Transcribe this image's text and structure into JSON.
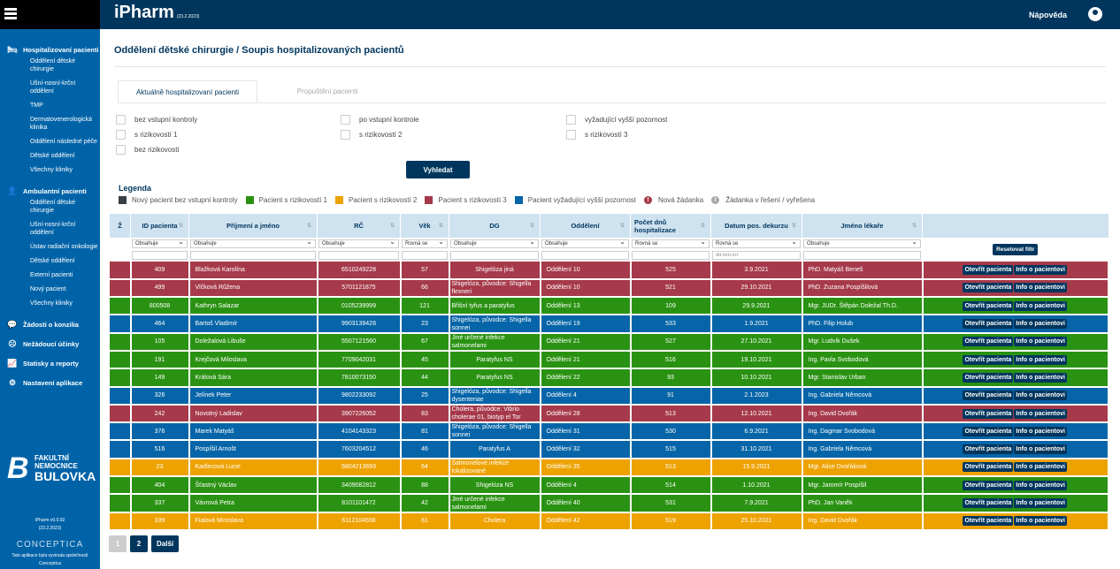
{
  "header": {
    "app_title": "iPharm",
    "app_date": "(23.2.2023)",
    "help": "Nápověda"
  },
  "sidebar": {
    "sections": [
      {
        "label": "Hospitalizovaní pacienti",
        "icon": "bed-icon",
        "items": [
          "Oddělení dětské chirurgie",
          "Ušní-nosní-krční oddělení",
          "TMP",
          "Dermatovenerologická klinika",
          "Oddělení následné péče",
          "Dětské oddělení",
          "Všechny kliniky"
        ]
      },
      {
        "label": "Ambulantní pacienti",
        "icon": "doctor-icon",
        "items": [
          "Oddělení dětské chirurgie",
          "Ušní-nosní-krční oddělení",
          "Ústav radiační onkologie",
          "Dětské oddělení",
          "Externí pacienti",
          "Nový pacient",
          "Všechny kliniky"
        ]
      },
      {
        "label": "Žádosti o konzilia",
        "icon": "chat-icon",
        "items": []
      },
      {
        "label": "Nežádoucí účinky",
        "icon": "sad-face-icon",
        "items": []
      },
      {
        "label": "Statisky a reporty",
        "icon": "chart-icon",
        "items": []
      },
      {
        "label": "Nastavení aplikace",
        "icon": "gear-icon",
        "items": []
      }
    ],
    "logo": {
      "line1": "FAKULTNÍ",
      "line2": "NEMOCNICE",
      "line3": "BULOVKA"
    },
    "version": "iPharm v0.0.92",
    "version_date": "(23.2.2023)",
    "vendor": "CONCEPTICA",
    "vendor_note": "Tato aplikace byla vyvinuta společností",
    "vendor_name": "Conceptica"
  },
  "page": {
    "title": "Oddělení dětské chirurgie / Soupis hospitalizovaných pacientů",
    "tabs": [
      {
        "label": "Aktuálně hospitalizovaní pacienti",
        "active": true
      },
      {
        "label": "Propuštění pacienti",
        "active": false
      }
    ]
  },
  "filters": {
    "checkboxes": [
      "bez vstupní kontroly",
      "po vstupní kontrole",
      "vyžadující vyšší pozornost",
      "s rizikovostí 1",
      "s rizikovostí 2",
      "s rizikovostí 3",
      "bez rizikovosti"
    ],
    "search_label": "Vyhledat"
  },
  "legend": {
    "title": "Legenda",
    "items": [
      {
        "label": "Nový pacient bez vstupní kontroly",
        "color": "#3a3f4a"
      },
      {
        "label": "Pacient s rizikovostí 1",
        "color": "#2a9212"
      },
      {
        "label": "Pacient s rizikovostí 2",
        "color": "#eea200"
      },
      {
        "label": "Pacient s rizikovostí 3",
        "color": "#a63a4a"
      },
      {
        "label": "Pacient vyžadující vyšší pozornost",
        "color": "#0565a8"
      }
    ],
    "new_request": "Nová žádanka",
    "request_in_progress": "Žádanka v řešení / vyřešena"
  },
  "table": {
    "columns": [
      "Ž",
      "ID pacienta",
      "Příjmení a jméno",
      "RČ",
      "Věk",
      "DG",
      "Oddělení",
      "Počet dnů hospitalizace",
      "Datum pos. dekurzu",
      "Jméno lékaře"
    ],
    "filters": [
      "Obsahuje",
      "Obsahuje",
      "Obsahuje",
      "Rovná se",
      "Obsahuje",
      "Obsahuje",
      "Rovná se",
      "Rovná se",
      "Obsahuje"
    ],
    "date_placeholder": "dd.mm.rrrr",
    "reset_label": "Resetovat filtr",
    "open_label": "Otevřít pacienta",
    "info_label": "Info o pacientovi",
    "rows": [
      {
        "risk": "red",
        "id": "409",
        "name": "Blažková Karolína",
        "rc": "6510249228",
        "age": "57",
        "dg": "Shigelóza jiná",
        "dept": "Oddělení 10",
        "days": "525",
        "date": "3.9.2021",
        "doctor": "PhD. Matyáš Beneš"
      },
      {
        "risk": "red",
        "id": "499",
        "name": "Vlčková Růžena",
        "rc": "5701121875",
        "age": "66",
        "dg": "Shigelóza, původce: Shigella flexneri",
        "dept": "Oddělení 10",
        "days": "521",
        "date": "29.10.2021",
        "doctor": "PhD. Zuzana Pospíšilová"
      },
      {
        "risk": "green",
        "id": "800508",
        "name": "Kathryn Salazar",
        "rc": "0105239999",
        "age": "121",
        "dg": "Břišní tyfus a paratyfus",
        "dept": "Oddělení 13",
        "days": "109",
        "date": "29.9.2021",
        "doctor": "Mgr. JUDr. Štěpán Doležal Th.D."
      },
      {
        "risk": "blue",
        "id": "464",
        "name": "Bartoš Vladimír",
        "rc": "9903139428",
        "age": "23",
        "dg": "Shigelóza, původce: Shigella sonnei",
        "dept": "Oddělení 19",
        "days": "533",
        "date": "1.9.2021",
        "doctor": "PhD. Filip Holub"
      },
      {
        "risk": "green",
        "id": "105",
        "name": "Doležalová Libuše",
        "rc": "5507121560",
        "age": "67",
        "dg": "Jiné určené infekce salmonelami",
        "dept": "Oddělení 21",
        "days": "527",
        "date": "27.10.2021",
        "doctor": "Mgr. Ludvík Dušek"
      },
      {
        "risk": "green",
        "id": "191",
        "name": "Krejčová Miloslava",
        "rc": "7709042031",
        "age": "45",
        "dg": "Paratyfus NS",
        "dept": "Oddělení 21",
        "days": "516",
        "date": "19.10.2021",
        "doctor": "Ing. Pavla Svobodová"
      },
      {
        "risk": "green",
        "id": "149",
        "name": "Králová Sára",
        "rc": "7810073150",
        "age": "44",
        "dg": "Paratyfus NS",
        "dept": "Oddělení 22",
        "days": "93",
        "date": "10.10.2021",
        "doctor": "Mgr. Stanislav Urban"
      },
      {
        "risk": "blue",
        "id": "326",
        "name": "Jelínek Peter",
        "rc": "9802233092",
        "age": "25",
        "dg": "Shigelóza, původce: Shigella dysenteriae",
        "dept": "Oddělení 4",
        "days": "91",
        "date": "2.1.2023",
        "doctor": "Ing. Gabriela Němcová"
      },
      {
        "risk": "red",
        "id": "242",
        "name": "Novotný Ladislav",
        "rc": "3907226052",
        "age": "83",
        "dg": "Cholera, původce: Vibrio cholerae 01, biotyp el Tor",
        "dept": "Oddělení 28",
        "days": "513",
        "date": "12.10.2021",
        "doctor": "Ing. David Dvořák"
      },
      {
        "risk": "blue",
        "id": "376",
        "name": "Marek Matyáš",
        "rc": "4104143323",
        "age": "81",
        "dg": "Shigelóza, původce: Shigella sonnei",
        "dept": "Oddělení 31",
        "days": "530",
        "date": "6.9.2021",
        "doctor": "Ing. Dagmar Svobodová"
      },
      {
        "risk": "blue",
        "id": "516",
        "name": "Pospíšil Arnošt",
        "rc": "7603204512",
        "age": "46",
        "dg": "Paratyfus A",
        "dept": "Oddělení 32",
        "days": "515",
        "date": "31.10.2021",
        "doctor": "Ing. Gabriela Němcová"
      },
      {
        "risk": "orange",
        "id": "23",
        "name": "Kadlecová Lucie",
        "rc": "5804213693",
        "age": "64",
        "dg": "Salmonelové infekce lokalizované",
        "dept": "Oddělení 35",
        "days": "513",
        "date": "15.9.2021",
        "doctor": "Mgr. Alice Dvořáková"
      },
      {
        "risk": "green",
        "id": "404",
        "name": "Šťastný Václav",
        "rc": "3409082812",
        "age": "88",
        "dg": "Shigelóza NS",
        "dept": "Oddělení 4",
        "days": "514",
        "date": "1.10.2021",
        "doctor": "Mgr. Jaromír Pospíšil"
      },
      {
        "risk": "green",
        "id": "337",
        "name": "Vávrová Petra",
        "rc": "8101101472",
        "age": "42",
        "dg": "Jiné určené infekce salmonelami",
        "dept": "Oddělení 40",
        "days": "531",
        "date": "7.9.2021",
        "doctor": "PhD. Jan Vaněk"
      },
      {
        "risk": "orange",
        "id": "339",
        "name": "Fialová Miroslava",
        "rc": "6112104556",
        "age": "61",
        "dg": "Cholera",
        "dept": "Oddělení 42",
        "days": "519",
        "date": "25.10.2021",
        "doctor": "Ing. David Dvořák"
      }
    ]
  },
  "pagination": {
    "pages": [
      "1",
      "2"
    ],
    "current": "2",
    "next": "Další"
  }
}
